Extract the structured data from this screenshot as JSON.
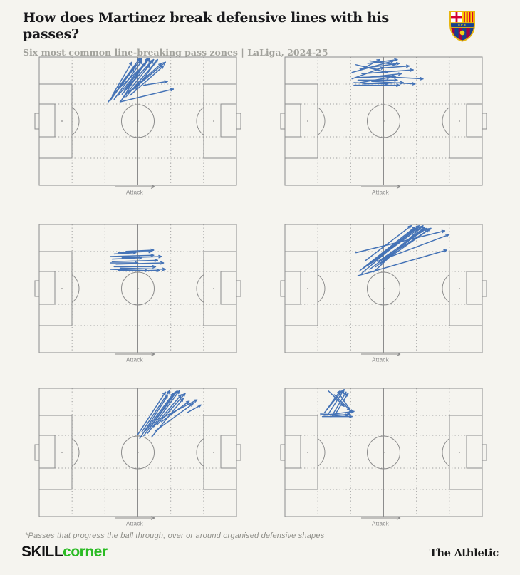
{
  "header": {
    "title": "How does Martinez break defensive lines with his passes?",
    "subtitle": "Six most common line-breaking pass zones | LaLiga, 2024-25",
    "club_crest": "fc-barcelona"
  },
  "footer": {
    "footnote": "*Passes that progress the ball through, over or around organised defensive shapes",
    "brand_left_primary": "SKILL",
    "brand_left_secondary": "corner",
    "brand_right": "The Athletic"
  },
  "colors": {
    "background": "#f5f4ef",
    "pitch_line": "#8c8c8c",
    "grid_dot": "#9c9c9c",
    "pass_blue": "#3c6db4",
    "attack_gray": "#8a8a8a",
    "skillcorner_green": "#2abb23",
    "title_text": "#19191c",
    "muted_text": "#a2a29c"
  },
  "chart_data": {
    "type": "scatter",
    "subtype": "pass-map-small-multiples",
    "title": "How does Martinez break defensive lines with his passes?",
    "subtitle": "Six most common line-breaking pass zones | LaLiga, 2024-25",
    "attack_label": "Attack",
    "coordinate_system": "percent of pitch, x 0=own goal line to 100=opposition goal line (attack left-to-right), y 0=top touchline to 100=bottom touchline",
    "grid": {
      "vertical_lines_pct": [
        16.67,
        33.33,
        66.67,
        83.33
      ],
      "horizontal_lines_pct": [
        21.1,
        36.7,
        62.2,
        78.9
      ]
    },
    "pitches": [
      {
        "zone": "left half-space just before halfway, passes forward into attacking half",
        "passes": [
          [
            38,
            33,
            52,
            3
          ],
          [
            40,
            30,
            55,
            2
          ],
          [
            36,
            34,
            49,
            6
          ],
          [
            42,
            29,
            57,
            3
          ],
          [
            44,
            31,
            59,
            4
          ],
          [
            39,
            27,
            52,
            1
          ],
          [
            41,
            35,
            56,
            6
          ],
          [
            37,
            30,
            47,
            4
          ],
          [
            43,
            26,
            58,
            2
          ],
          [
            45,
            28,
            62,
            5
          ],
          [
            40,
            24,
            51,
            1
          ],
          [
            46,
            30,
            63,
            7
          ],
          [
            42,
            33,
            55,
            1
          ],
          [
            35,
            35,
            48,
            9
          ],
          [
            47,
            26,
            64,
            4
          ],
          [
            44,
            24,
            56,
            1
          ],
          [
            38,
            28,
            54,
            5
          ],
          [
            49,
            25,
            60,
            2
          ],
          [
            53,
            22,
            65,
            19
          ],
          [
            41,
            35,
            68,
            25
          ]
        ]
      },
      {
        "zone": "wide-left channel around halfway, mostly flat forward passes",
        "passes": [
          [
            34,
            12,
            55,
            3
          ],
          [
            36,
            16,
            56,
            15
          ],
          [
            35,
            20,
            52,
            21
          ],
          [
            38,
            9,
            58,
            5
          ],
          [
            37,
            18,
            57,
            18
          ],
          [
            40,
            21,
            60,
            20
          ],
          [
            34,
            17,
            50,
            8
          ],
          [
            42,
            5,
            57,
            2
          ],
          [
            39,
            13,
            65,
            10
          ],
          [
            36,
            6,
            52,
            12
          ],
          [
            44,
            19,
            66,
            21
          ],
          [
            41,
            16,
            59,
            13
          ],
          [
            35,
            22,
            58,
            22
          ],
          [
            43,
            3,
            56,
            6
          ],
          [
            38,
            20,
            53,
            16
          ],
          [
            45,
            9,
            63,
            7
          ],
          [
            37,
            11,
            48,
            2
          ],
          [
            47,
            15,
            70,
            17
          ]
        ]
      },
      {
        "zone": "central left half-space above centre circle, short flat passes",
        "passes": [
          [
            36,
            25,
            58,
            24
          ],
          [
            37,
            29,
            60,
            28
          ],
          [
            38,
            33,
            59,
            33
          ],
          [
            36,
            35,
            55,
            36
          ],
          [
            40,
            22,
            57,
            21
          ],
          [
            39,
            31,
            63,
            30
          ],
          [
            37,
            27,
            52,
            26
          ],
          [
            41,
            34,
            64,
            35
          ],
          [
            38,
            23,
            49,
            22
          ],
          [
            36,
            30,
            50,
            30
          ],
          [
            42,
            26,
            62,
            25
          ],
          [
            40,
            36,
            61,
            36
          ],
          [
            44,
            21,
            58,
            20
          ]
        ]
      },
      {
        "zone": "centre to attacking-right, long diagonals toward left wing",
        "passes": [
          [
            38,
            36,
            66,
            2
          ],
          [
            40,
            34,
            68,
            1
          ],
          [
            42,
            32,
            67,
            3
          ],
          [
            44,
            30,
            69,
            2
          ],
          [
            46,
            33,
            70,
            4
          ],
          [
            39,
            38,
            65,
            4
          ],
          [
            43,
            35,
            71,
            2
          ],
          [
            47,
            29,
            72,
            3
          ],
          [
            41,
            28,
            64,
            1
          ],
          [
            48,
            31,
            73,
            4
          ],
          [
            45,
            37,
            70,
            1
          ],
          [
            50,
            27,
            74,
            3
          ],
          [
            36,
            22,
            81,
            5
          ],
          [
            52,
            26,
            83,
            8
          ],
          [
            37,
            40,
            82,
            20
          ]
        ]
      },
      {
        "zone": "just past halfway, diagonals into attacking-left channel",
        "passes": [
          [
            50,
            36,
            64,
            3
          ],
          [
            52,
            34,
            66,
            2
          ],
          [
            54,
            33,
            68,
            4
          ],
          [
            51,
            39,
            65,
            6
          ],
          [
            56,
            31,
            70,
            2
          ],
          [
            53,
            37,
            69,
            3
          ],
          [
            58,
            30,
            72,
            5
          ],
          [
            55,
            35,
            71,
            2
          ],
          [
            60,
            28,
            74,
            4
          ],
          [
            57,
            38,
            73,
            8
          ],
          [
            62,
            26,
            76,
            10
          ],
          [
            59,
            33,
            78,
            12
          ],
          [
            61,
            24,
            80,
            9
          ],
          [
            75,
            19,
            82,
            13
          ]
        ]
      },
      {
        "zone": "deep wide-left near own penalty box, short mixed passes",
        "passes": [
          [
            20,
            19,
            29,
            2
          ],
          [
            22,
            20,
            30,
            1
          ],
          [
            24,
            21,
            31,
            3
          ],
          [
            21,
            17,
            28,
            2
          ],
          [
            26,
            19,
            32,
            4
          ],
          [
            23,
            22,
            33,
            20
          ],
          [
            18,
            20,
            32,
            21
          ],
          [
            19,
            22,
            34,
            22
          ],
          [
            25,
            5,
            33,
            17
          ],
          [
            27,
            3,
            34,
            19
          ],
          [
            20,
            21,
            35,
            18
          ],
          [
            22,
            2,
            30,
            14
          ]
        ]
      }
    ]
  }
}
